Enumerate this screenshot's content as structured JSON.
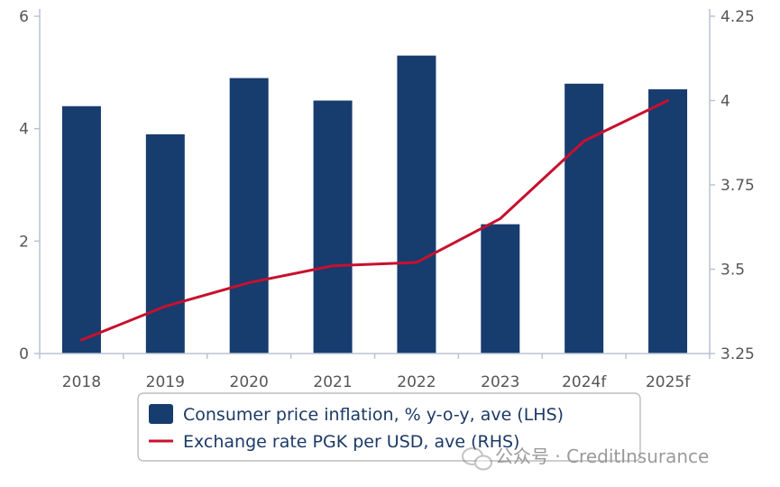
{
  "chart_data": {
    "type": "bar",
    "categories": [
      "2018",
      "2019",
      "2020",
      "2021",
      "2022",
      "2023",
      "2024f",
      "2025f"
    ],
    "series": [
      {
        "name": "Consumer price inflation, % y-o-y, ave (LHS)",
        "type": "bar",
        "axis": "left",
        "color": "#173c6e",
        "values": [
          4.4,
          3.9,
          4.9,
          4.5,
          5.3,
          2.3,
          4.8,
          4.7
        ]
      },
      {
        "name": "Exchange rate PGK per USD, ave (RHS)",
        "type": "line",
        "axis": "right",
        "color": "#c8102e",
        "values": [
          3.29,
          3.39,
          3.46,
          3.51,
          3.52,
          3.65,
          3.88,
          4.0
        ]
      }
    ],
    "y_left": {
      "range": [
        0,
        6
      ],
      "ticks": [
        "0",
        "2",
        "4",
        "6"
      ]
    },
    "y_right": {
      "range": [
        3.25,
        4.25
      ],
      "ticks": [
        "3.25",
        "3.5",
        "3.75",
        "4",
        "4.25"
      ]
    },
    "legend_position": "bottom-center",
    "grid": false
  },
  "watermark": {
    "text": "公众号 · CreditInsurance",
    "icon": "wechat-icon"
  }
}
